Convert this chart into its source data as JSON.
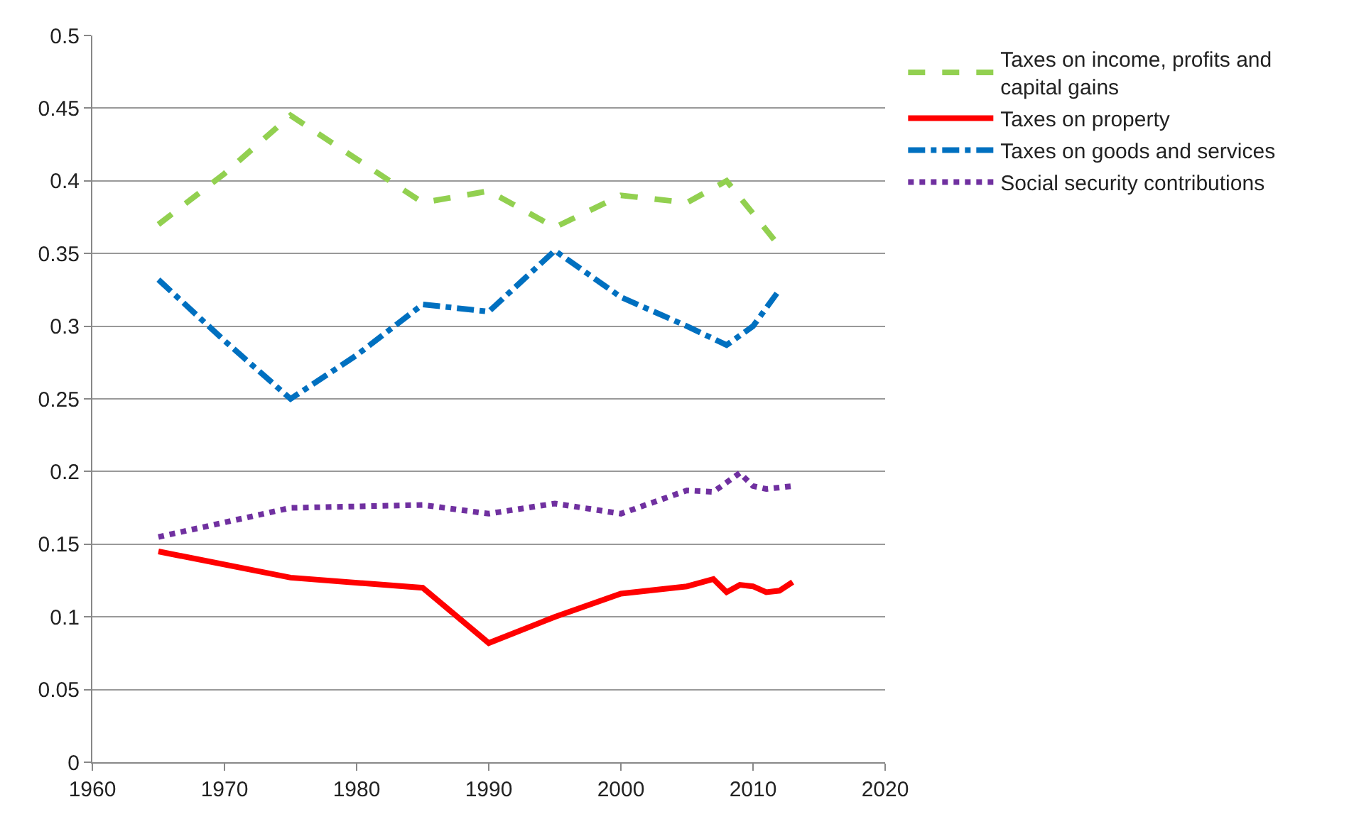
{
  "chart_data": {
    "type": "line",
    "xlim": [
      1960,
      2020
    ],
    "xticks": [
      1960,
      1970,
      1980,
      1990,
      2000,
      2010,
      2020
    ],
    "ylim": [
      0,
      0.5
    ],
    "yticks": [
      0,
      0.05,
      0.1,
      0.15,
      0.2,
      0.25,
      0.3,
      0.35,
      0.4,
      0.45,
      0.5
    ],
    "grid": "y",
    "legend": "right",
    "marker": "none",
    "series": [
      {
        "name": "Taxes on income, profits and capital gains",
        "color": "#92d050",
        "line_style": "dashed",
        "x": [
          1965,
          1970,
          1975,
          1980,
          1985,
          1990,
          1995,
          2000,
          2005,
          2008,
          2012
        ],
        "values": [
          0.37,
          0.405,
          0.445,
          0.415,
          0.385,
          0.393,
          0.368,
          0.39,
          0.385,
          0.4,
          0.355
        ]
      },
      {
        "name": "Taxes on property",
        "color": "#ff0000",
        "line_style": "solid",
        "x": [
          1965,
          1975,
          1985,
          1990,
          1995,
          2000,
          2005,
          2007,
          2008,
          2009,
          2010,
          2011,
          2012,
          2013
        ],
        "values": [
          0.145,
          0.127,
          0.12,
          0.082,
          0.1,
          0.116,
          0.121,
          0.126,
          0.117,
          0.122,
          0.121,
          0.117,
          0.118,
          0.124
        ]
      },
      {
        "name": "Taxes on goods and services",
        "color": "#0070c0",
        "line_style": "dashdot",
        "x": [
          1965,
          1970,
          1975,
          1980,
          1985,
          1990,
          1995,
          2000,
          2005,
          2008,
          2010,
          2012
        ],
        "values": [
          0.332,
          0.29,
          0.25,
          0.28,
          0.315,
          0.31,
          0.352,
          0.32,
          0.3,
          0.287,
          0.3,
          0.325
        ]
      },
      {
        "name": "Social security contributions",
        "color": "#7030a0",
        "line_style": "dotted",
        "x": [
          1965,
          1970,
          1975,
          1980,
          1985,
          1990,
          1995,
          2000,
          2005,
          2007,
          2009,
          2010,
          2011,
          2013
        ],
        "values": [
          0.155,
          0.165,
          0.175,
          0.176,
          0.177,
          0.171,
          0.178,
          0.171,
          0.187,
          0.186,
          0.199,
          0.19,
          0.188,
          0.19
        ]
      }
    ]
  }
}
